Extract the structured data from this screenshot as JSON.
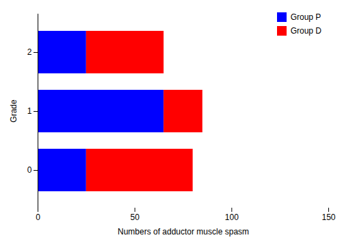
{
  "chart_data": {
    "type": "bar",
    "orientation": "horizontal",
    "stacked": true,
    "categories": [
      "0",
      "1",
      "2"
    ],
    "series": [
      {
        "name": "Group P",
        "color": "#0000FF",
        "values": [
          25,
          65,
          25
        ]
      },
      {
        "name": "Group D",
        "color": "#FF0000",
        "values": [
          55,
          20,
          40
        ]
      }
    ],
    "xlabel": "Numbers of adductor muscle spasm",
    "ylabel": "Grade",
    "xlim": [
      0,
      150
    ],
    "xticks": [
      0,
      50,
      100,
      150
    ],
    "legend": "upper right"
  }
}
